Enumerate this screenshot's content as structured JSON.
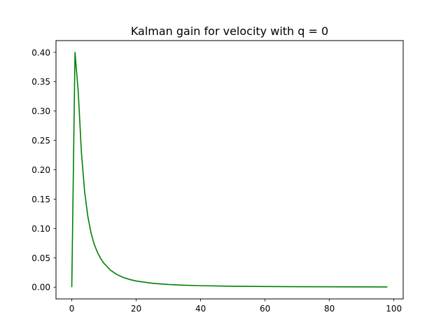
{
  "chart_data": {
    "type": "line",
    "title": "Kalman gain for velocity with q = 0",
    "xlabel": "",
    "ylabel": "",
    "xlim": [
      -4.9,
      102.9
    ],
    "ylim": [
      -0.02,
      0.42
    ],
    "x_ticks": [
      0,
      20,
      40,
      60,
      80,
      100
    ],
    "y_ticks": [
      0.0,
      0.05,
      0.1,
      0.15,
      0.2,
      0.25,
      0.3,
      0.35,
      0.4
    ],
    "x_tick_labels": [
      "0",
      "20",
      "40",
      "60",
      "80",
      "100"
    ],
    "y_tick_labels": [
      "0.00",
      "0.05",
      "0.10",
      "0.15",
      "0.20",
      "0.25",
      "0.30",
      "0.35",
      "0.40"
    ],
    "grid": false,
    "legend": "none",
    "series": [
      {
        "color": "#008000",
        "x": [
          0,
          1,
          2,
          3,
          4,
          5,
          6,
          7,
          8,
          9,
          10,
          12,
          14,
          16,
          18,
          20,
          25,
          30,
          35,
          40,
          50,
          60,
          70,
          80,
          90,
          98
        ],
        "y": [
          0.0,
          0.4,
          0.333,
          0.229,
          0.162,
          0.12,
          0.092,
          0.0725,
          0.059,
          0.0485,
          0.0405,
          0.029,
          0.0215,
          0.0165,
          0.013,
          0.0105,
          0.0066,
          0.0045,
          0.0033,
          0.0025,
          0.0016,
          0.0011,
          0.0008,
          0.0006,
          0.0005,
          0.0004
        ]
      }
    ]
  }
}
